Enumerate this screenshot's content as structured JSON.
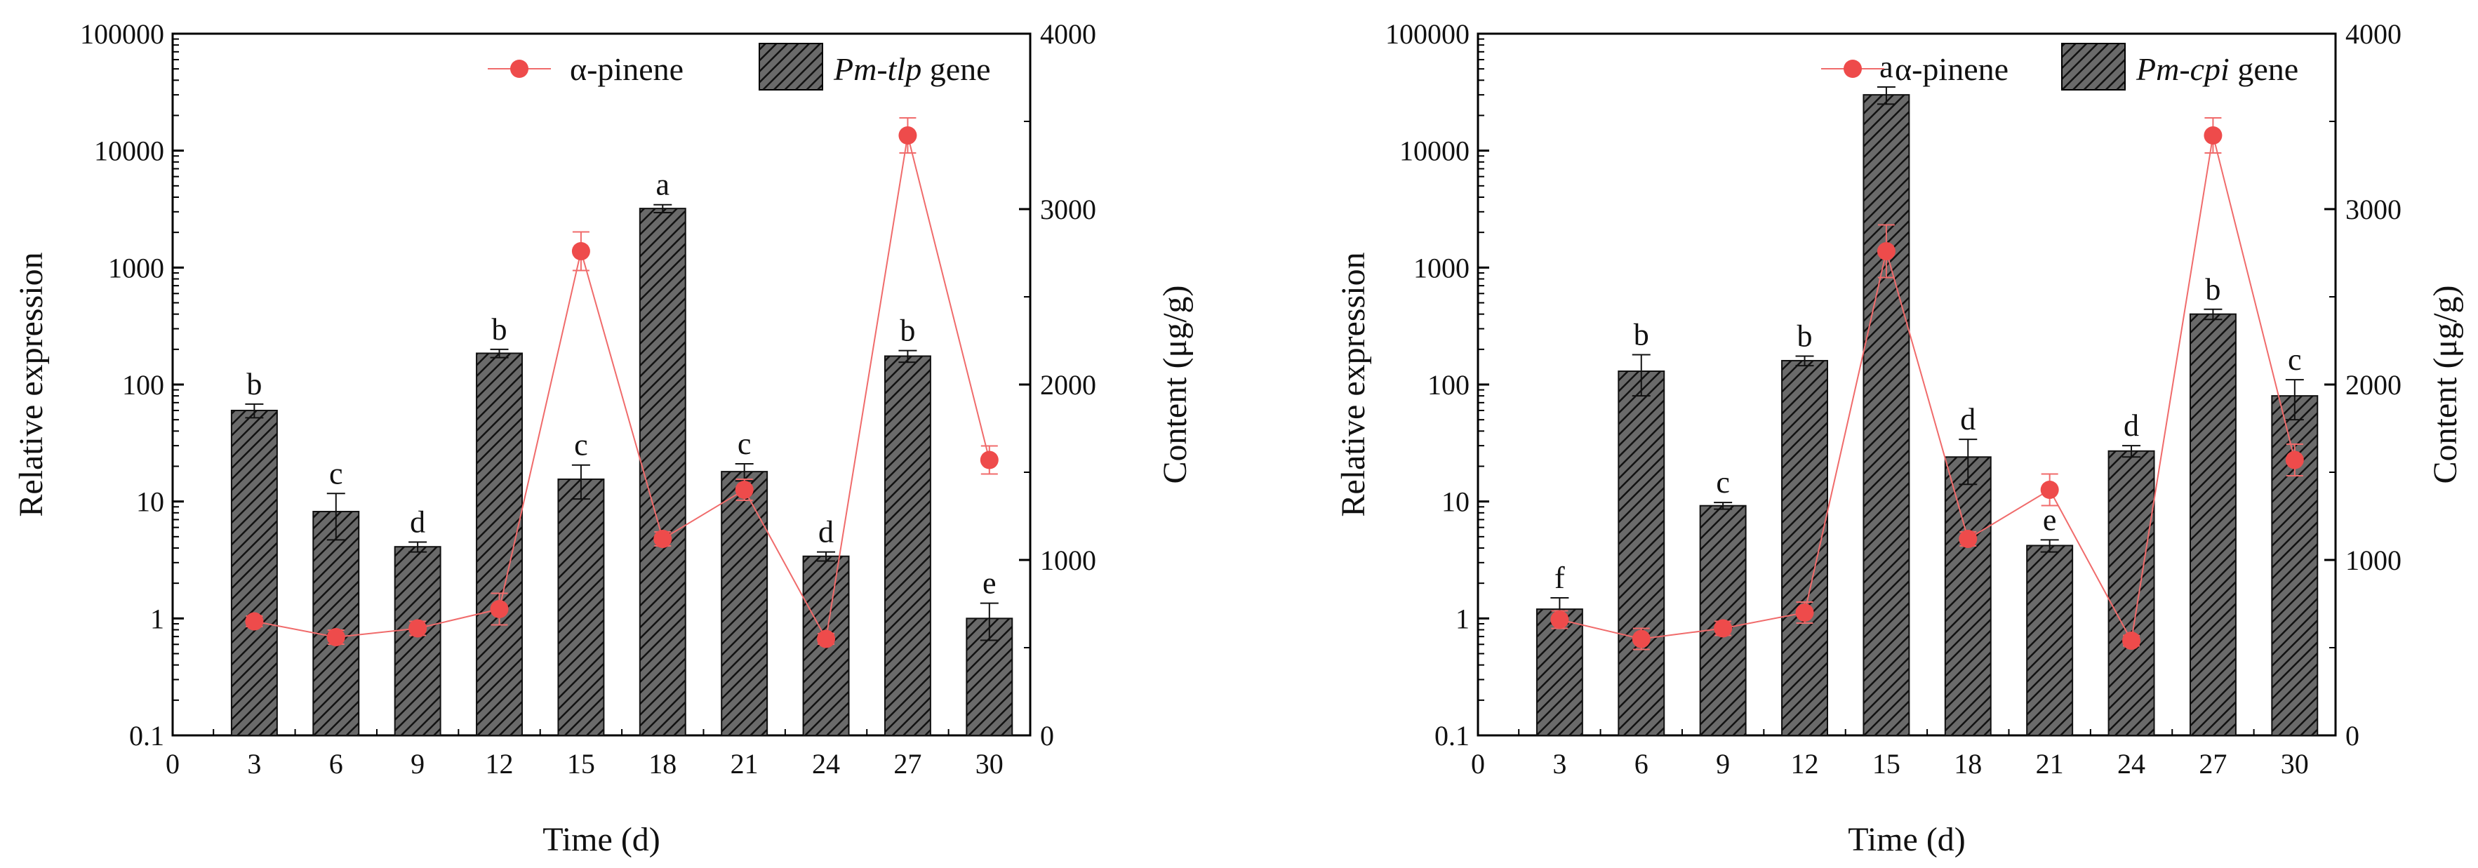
{
  "chart_data": [
    {
      "type": "bar",
      "gene_prefix": "Pm-tlp",
      "gene_suffix": " gene",
      "line_series_name": "α-pinene",
      "xlabel": "Time (d)",
      "ylabel_left": "Relative expression",
      "ylabel_right": "Content (μg/g)",
      "categories": [
        3,
        6,
        9,
        12,
        15,
        18,
        21,
        24,
        27,
        30
      ],
      "x_ticks": [
        "0",
        "3",
        "6",
        "9",
        "12",
        "15",
        "18",
        "21",
        "24",
        "27",
        "30"
      ],
      "xlim": [
        0,
        31.5
      ],
      "left_ticks": [
        "0.1",
        "1",
        "10",
        "100",
        "1000",
        "10000",
        "100000"
      ],
      "left_log_range": [
        0.1,
        100000
      ],
      "right_ticks": [
        "0",
        "1000",
        "2000",
        "3000",
        "4000"
      ],
      "right_range": [
        0,
        4000
      ],
      "bar_values": [
        60,
        8.2,
        4.1,
        185,
        15.5,
        3200,
        18,
        3.4,
        175,
        1.0
      ],
      "bar_errors": [
        8,
        3.5,
        0.4,
        15,
        5,
        250,
        3,
        0.3,
        20,
        0.35
      ],
      "bar_labels": [
        "b",
        "c",
        "d",
        "b",
        "c",
        "a",
        "c",
        "d",
        "b",
        "e"
      ],
      "line_values": [
        650,
        560,
        610,
        720,
        2760,
        1120,
        1400,
        550,
        3420,
        1570
      ],
      "line_errors": [
        30,
        40,
        40,
        90,
        110,
        40,
        60,
        30,
        100,
        80
      ]
    },
    {
      "type": "bar",
      "gene_prefix": "Pm-cpi",
      "gene_suffix": " gene",
      "line_series_name": "α-pinene",
      "xlabel": "Time (d)",
      "ylabel_left": "Relative expression",
      "ylabel_right": "Content (μg/g)",
      "categories": [
        3,
        6,
        9,
        12,
        15,
        18,
        21,
        24,
        27,
        30
      ],
      "x_ticks": [
        "0",
        "3",
        "6",
        "9",
        "12",
        "15",
        "18",
        "21",
        "24",
        "27",
        "30"
      ],
      "xlim": [
        0,
        31.5
      ],
      "left_ticks": [
        "0.1",
        "1",
        "10",
        "100",
        "1000",
        "10000",
        "100000"
      ],
      "left_log_range": [
        0.1,
        100000
      ],
      "right_ticks": [
        "0",
        "1000",
        "2000",
        "3000",
        "4000"
      ],
      "right_range": [
        0,
        4000
      ],
      "bar_values": [
        1.2,
        130,
        9.2,
        160,
        30000,
        24,
        4.2,
        27,
        400,
        80
      ],
      "bar_errors": [
        0.3,
        50,
        0.6,
        15,
        5000,
        10,
        0.5,
        3,
        40,
        30
      ],
      "bar_labels": [
        "f",
        "b",
        "c",
        "b",
        "a",
        "d",
        "e",
        "d",
        "b",
        "c"
      ],
      "line_values": [
        660,
        550,
        610,
        700,
        2760,
        1120,
        1400,
        540,
        3420,
        1570
      ],
      "line_errors": [
        50,
        60,
        40,
        60,
        150,
        40,
        90,
        30,
        100,
        90
      ]
    }
  ]
}
